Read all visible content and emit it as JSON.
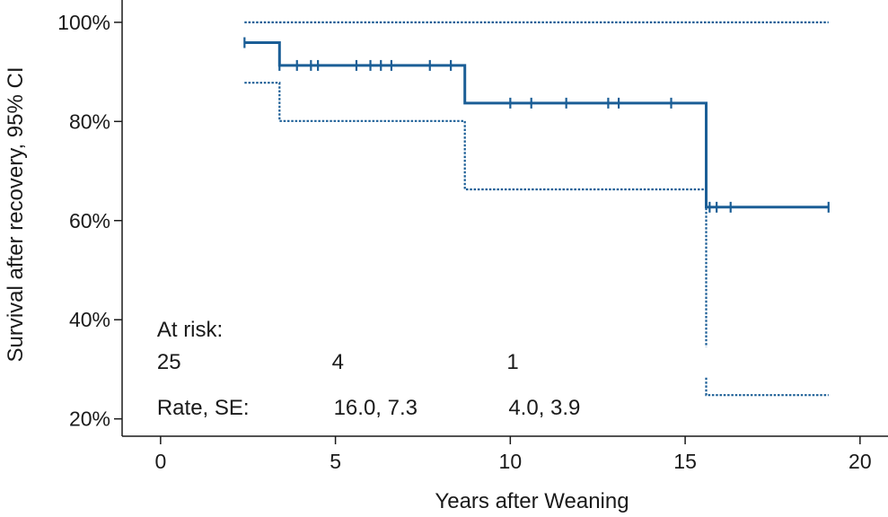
{
  "chart_data": {
    "type": "line",
    "title": "",
    "xlabel": "Years after Weaning",
    "ylabel": "Survival after recovery, 95% CI",
    "xlim": [
      -1.1,
      20.8
    ],
    "ylim": [
      16.5,
      104.5
    ],
    "x_ticks": [
      0,
      5,
      10,
      15,
      20
    ],
    "y_ticks": [
      20,
      40,
      60,
      80,
      100
    ],
    "y_tick_labels": [
      "20%",
      "40%",
      "60%",
      "80%",
      "100%"
    ],
    "grid": false,
    "color": "#1b5e96",
    "series": [
      {
        "role": "estimate",
        "style": "solid",
        "points": [
          [
            2.4,
            95.9
          ],
          [
            3.4,
            95.9
          ],
          [
            3.4,
            91.3
          ],
          [
            8.7,
            91.3
          ],
          [
            8.7,
            83.7
          ],
          [
            15.6,
            83.7
          ],
          [
            15.6,
            62.7
          ],
          [
            19.1,
            62.7
          ]
        ]
      },
      {
        "role": "upper_ci",
        "style": "dotted",
        "points": [
          [
            2.4,
            100
          ],
          [
            19.1,
            100
          ]
        ]
      },
      {
        "role": "lower_ci",
        "style": "dotted",
        "segments": [
          [
            [
              2.4,
              87.8
            ],
            [
              3.4,
              87.8
            ],
            [
              3.4,
              80.1
            ],
            [
              8.7,
              80.1
            ],
            [
              8.7,
              66.3
            ],
            [
              15.6,
              66.3
            ],
            [
              15.6,
              34.5
            ]
          ],
          [
            [
              15.6,
              28.3
            ],
            [
              15.6,
              24.8
            ],
            [
              19.1,
              24.8
            ]
          ]
        ]
      }
    ],
    "censored_x": [
      2.4,
      3.4,
      3.9,
      4.3,
      4.5,
      5.6,
      6.0,
      6.3,
      6.6,
      7.7,
      8.3,
      10.0,
      10.6,
      11.6,
      12.8,
      13.1,
      14.6,
      15.7,
      15.9,
      16.3,
      19.1
    ],
    "annotations": {
      "at_risk_label": "At risk:",
      "at_risk_values": [
        {
          "x": 0,
          "label": "25"
        },
        {
          "x": 5,
          "label": "4"
        },
        {
          "x": 10,
          "label": "1"
        }
      ],
      "rate_label": "Rate, SE:",
      "rate_values": [
        {
          "x": 5,
          "label": "16.0, 7.3"
        },
        {
          "x": 10,
          "label": "4.0, 3.9"
        }
      ]
    }
  }
}
